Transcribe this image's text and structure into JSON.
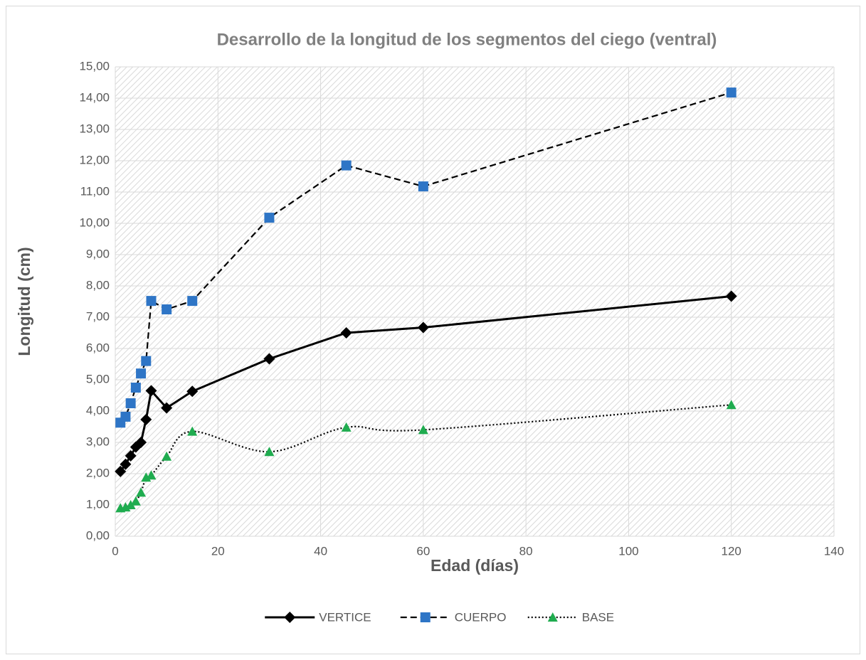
{
  "chart_data": {
    "type": "line",
    "title": "Desarrollo de la longitud de los segmentos del ciego (ventral)",
    "x_label": "Edad (días)",
    "y_label": "Longitud (cm)",
    "x": [
      1,
      2,
      3,
      4,
      5,
      6,
      7,
      10,
      15,
      30,
      45,
      60,
      120
    ],
    "series": [
      {
        "name": "VERTICE",
        "color": "#000000",
        "line_color": "#000000",
        "line_style": "solid",
        "marker": "diamond",
        "smooth": false,
        "values": [
          2.07,
          2.3,
          2.57,
          2.85,
          3.0,
          3.73,
          4.65,
          4.1,
          4.63,
          5.67,
          6.5,
          6.67,
          7.67
        ]
      },
      {
        "name": "CUERPO",
        "color": "#2e75c6",
        "line_color": "#000000",
        "line_style": "dashed",
        "marker": "square",
        "smooth": false,
        "values": [
          3.63,
          3.82,
          4.25,
          4.75,
          5.2,
          5.6,
          7.52,
          7.25,
          7.52,
          10.18,
          11.85,
          11.18,
          14.18
        ]
      },
      {
        "name": "BASE",
        "color": "#1fac4f",
        "line_color": "#000000",
        "line_style": "dotted",
        "marker": "triangle",
        "smooth": true,
        "values": [
          0.9,
          0.93,
          1.0,
          1.12,
          1.4,
          1.88,
          1.95,
          2.55,
          3.35,
          2.7,
          3.48,
          3.4,
          4.2
        ]
      }
    ],
    "xlim": [
      0,
      140
    ],
    "xticks": [
      0,
      20,
      40,
      60,
      80,
      100,
      120,
      140
    ],
    "ylim": [
      0,
      15
    ],
    "yticks": [
      {
        "value": 0,
        "label": "0,00"
      },
      {
        "value": 1,
        "label": "1,00"
      },
      {
        "value": 2,
        "label": "2,00"
      },
      {
        "value": 3,
        "label": "3,00"
      },
      {
        "value": 4,
        "label": "4,00"
      },
      {
        "value": 5,
        "label": "5,00"
      },
      {
        "value": 6,
        "label": "6,00"
      },
      {
        "value": 7,
        "label": "7,00"
      },
      {
        "value": 8,
        "label": "8,00"
      },
      {
        "value": 9,
        "label": "9,00"
      },
      {
        "value": 10,
        "label": "10,00"
      },
      {
        "value": 11,
        "label": "11,00"
      },
      {
        "value": 12,
        "label": "12,00"
      },
      {
        "value": 13,
        "label": "13,00"
      },
      {
        "value": 14,
        "label": "14,00"
      },
      {
        "value": 15,
        "label": "15,00"
      }
    ],
    "grid": true,
    "legend": "bottom"
  }
}
